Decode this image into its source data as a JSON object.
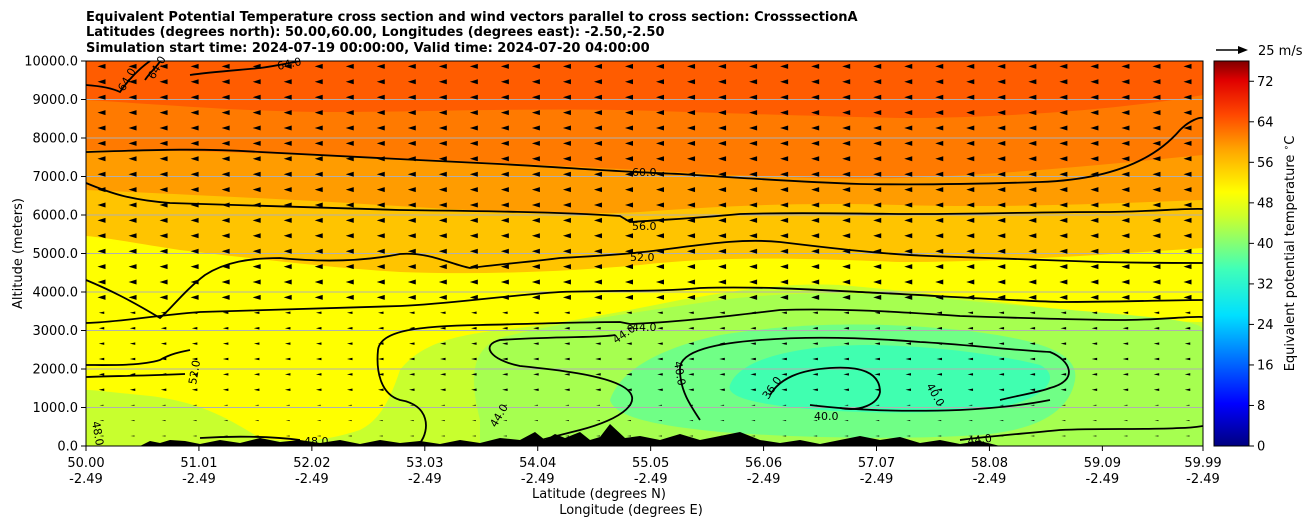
{
  "chart_data": {
    "type": "heatmap",
    "title_lines": [
      "Equivalent Potential Temperature cross section and wind vectors parallel to cross section: CrosssectionA",
      "Latitudes (degrees north): 50.00,60.00, Longitudes (degrees east): -2.50,-2.50",
      "Simulation start time: 2024-07-19 00:00:00, Valid time: 2024-07-20 04:00:00"
    ],
    "xlabel_lines": [
      "Latitude (degrees N)",
      "Longitude (degrees E)"
    ],
    "ylabel": "Altitude (meters)",
    "x_ticks": [
      {
        "lat": "50.00",
        "lon": "-2.49",
        "value": 50.0
      },
      {
        "lat": "51.01",
        "lon": "-2.49",
        "value": 51.01
      },
      {
        "lat": "52.02",
        "lon": "-2.49",
        "value": 52.02
      },
      {
        "lat": "53.03",
        "lon": "-2.49",
        "value": 53.03
      },
      {
        "lat": "54.04",
        "lon": "-2.49",
        "value": 54.04
      },
      {
        "lat": "55.05",
        "lon": "-2.49",
        "value": 55.05
      },
      {
        "lat": "56.06",
        "lon": "-2.49",
        "value": 56.06
      },
      {
        "lat": "57.07",
        "lon": "-2.49",
        "value": 57.07
      },
      {
        "lat": "58.08",
        "lon": "-2.49",
        "value": 58.08
      },
      {
        "lat": "59.09",
        "lon": "-2.49",
        "value": 59.09
      },
      {
        "lat": "59.99",
        "lon": "-2.49",
        "value": 59.99
      }
    ],
    "y_ticks": [
      "0.0",
      "1000.0",
      "2000.0",
      "3000.0",
      "4000.0",
      "5000.0",
      "6000.0",
      "7000.0",
      "8000.0",
      "9000.0",
      "10000.0"
    ],
    "xlim": [
      50.0,
      59.99
    ],
    "ylim": [
      0,
      10000
    ],
    "grid": "horizontal",
    "colorbar": {
      "label": "Equivalent potential temperature $^\\circ$C",
      "ticks": [
        "0",
        "8",
        "16",
        "24",
        "32",
        "40",
        "48",
        "56",
        "64",
        "72"
      ],
      "range": [
        0,
        76
      ],
      "colormap": "jet"
    },
    "quiver_key": "25 m/s",
    "contour_levels": [
      36,
      40,
      44,
      48,
      52,
      56,
      60,
      64
    ],
    "contour_labels": [
      {
        "text": "64.0",
        "lat": 50.4,
        "alt": 9200
      },
      {
        "text": "64.0",
        "lat": 50.65,
        "alt": 9700
      },
      {
        "text": "64.0",
        "lat": 51.85,
        "alt": 9900
      },
      {
        "text": "60.0",
        "lat": 55.35,
        "alt": 7100
      },
      {
        "text": "56.0",
        "lat": 55.35,
        "alt": 5600
      },
      {
        "text": "52.0",
        "lat": 55.35,
        "alt": 4900
      },
      {
        "text": "44.0",
        "lat": 55.15,
        "alt": 3100
      },
      {
        "text": "44.0",
        "lat": 55.4,
        "alt": 3100
      },
      {
        "text": "40.0",
        "lat": 55.2,
        "alt": 1900
      },
      {
        "text": "36.0",
        "lat": 56.15,
        "alt": 1600
      },
      {
        "text": "40.0",
        "lat": 56.65,
        "alt": 800
      },
      {
        "text": "40.0",
        "lat": 57.55,
        "alt": 1200
      },
      {
        "text": "52.0",
        "lat": 51.05,
        "alt": 2100
      },
      {
        "text": "44.0",
        "lat": 54.55,
        "alt": 800
      },
      {
        "text": "48.0",
        "lat": 50.1,
        "alt": 300
      },
      {
        "text": "48.0",
        "lat": 52.1,
        "alt": 100
      },
      {
        "text": "44.0",
        "lat": 58.45,
        "alt": 100
      }
    ],
    "wind_direction": "southward (toward lower latitude) aloft, weak near surface"
  },
  "colors": {
    "contour": "#000000",
    "terrain": "#000000",
    "grid": "#b0b0b0"
  }
}
